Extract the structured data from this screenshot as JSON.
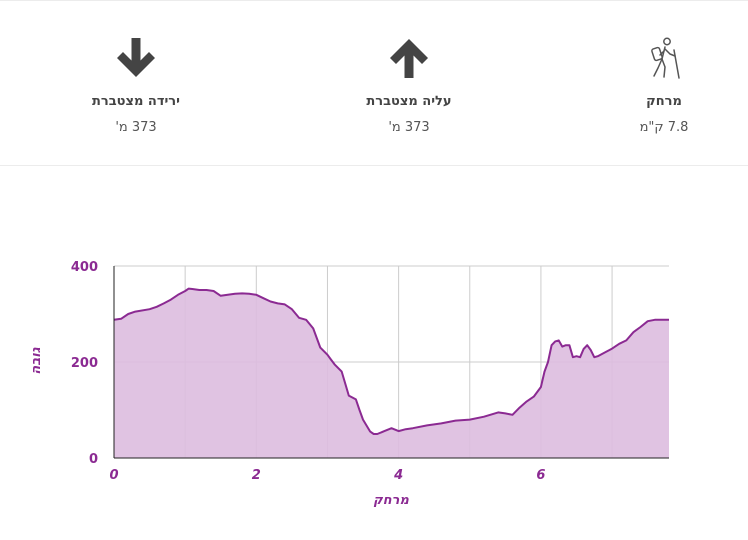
{
  "stats": {
    "distance": {
      "label": "מרחק",
      "value": "7.8 ק\"מ",
      "icon": "hiker-icon"
    },
    "ascent": {
      "label": "עליה מצטברת",
      "value": "373 מ'",
      "icon": "arrow-up-icon"
    },
    "descent": {
      "label": "ירידה מצטברת",
      "value": "373 מ'",
      "icon": "arrow-down-icon"
    }
  },
  "chart_data": {
    "type": "area",
    "xlabel": "מרחק",
    "ylabel": "גובה",
    "xlim": [
      0,
      7.8
    ],
    "ylim": [
      0,
      400
    ],
    "xticks": [
      "0",
      "2",
      "4",
      "6"
    ],
    "yticks": [
      "0",
      "200",
      "400"
    ],
    "grid": true,
    "colors": {
      "line": "#8b2a92",
      "fill": "#ddbddf",
      "grid": "#cccccc",
      "label": "#8b2a92"
    },
    "series": [
      {
        "x": [
          0,
          0.1,
          0.2,
          0.3,
          0.5,
          0.6,
          0.7,
          0.8,
          0.9,
          1.0,
          1.05,
          1.1,
          1.2,
          1.3,
          1.4,
          1.5,
          1.6,
          1.7,
          1.8,
          1.9,
          2.0,
          2.1,
          2.2,
          2.3,
          2.4,
          2.5,
          2.6,
          2.65,
          2.7,
          2.8,
          2.9,
          3.0,
          3.05,
          3.1,
          3.2,
          3.3,
          3.4,
          3.45,
          3.5,
          3.6,
          3.65,
          3.7,
          3.8,
          3.9,
          4.0,
          4.1,
          4.2,
          4.4,
          4.6,
          4.8,
          5.0,
          5.2,
          5.4,
          5.5,
          5.6,
          5.7,
          5.8,
          5.9,
          6.0,
          6.05,
          6.1,
          6.15,
          6.2,
          6.25,
          6.3,
          6.35,
          6.4,
          6.45,
          6.5,
          6.55,
          6.6,
          6.65,
          6.7,
          6.75,
          6.8,
          6.9,
          7.0,
          7.1,
          7.2,
          7.3,
          7.4,
          7.5,
          7.6,
          7.8
        ],
        "y": [
          288,
          290,
          300,
          305,
          310,
          315,
          322,
          330,
          340,
          348,
          353,
          352,
          350,
          350,
          348,
          338,
          340,
          342,
          343,
          342,
          340,
          333,
          326,
          322,
          320,
          310,
          292,
          290,
          288,
          270,
          230,
          215,
          205,
          195,
          180,
          130,
          122,
          100,
          80,
          55,
          50,
          50,
          56,
          62,
          56,
          60,
          62,
          68,
          72,
          78,
          80,
          86,
          95,
          93,
          90,
          105,
          118,
          128,
          148,
          180,
          200,
          235,
          243,
          245,
          232,
          235,
          235,
          210,
          212,
          210,
          227,
          235,
          225,
          210,
          212,
          220,
          228,
          238,
          245,
          262,
          273,
          285,
          288,
          288
        ]
      }
    ]
  }
}
